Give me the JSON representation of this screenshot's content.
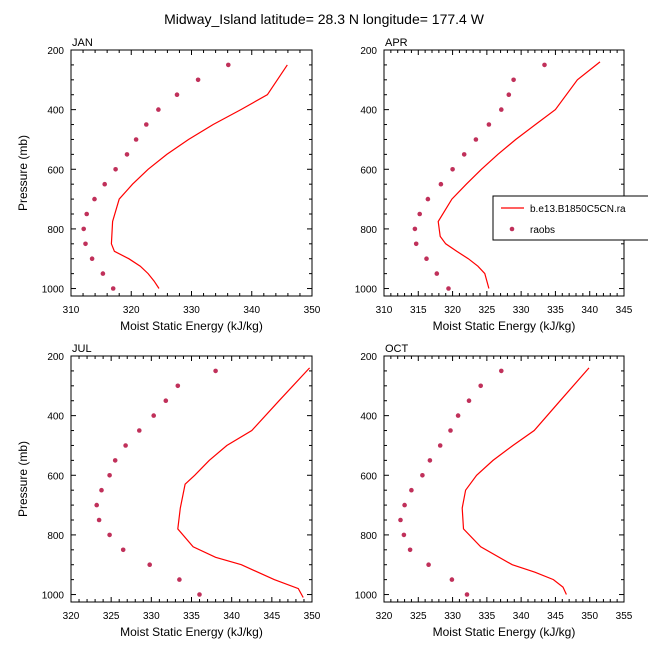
{
  "title": "Midway_Island  latitude= 28.3 N longitude= 177.4 W",
  "colors": {
    "model": "#ff0000",
    "obs": "#c0305a",
    "axis": "#000000"
  },
  "legend": {
    "entries": [
      "b.e13.B1850C5CN.ra",
      "raobs"
    ],
    "placement": "right-middle"
  },
  "chart_data": [
    {
      "type": "line",
      "panel": "JAN",
      "xlabel": "Moist Static Energy (kJ/kg)",
      "ylabel": "Pressure (mb)",
      "xlim": [
        310,
        350
      ],
      "xticks": [
        310,
        320,
        330,
        340,
        350
      ],
      "ylim": [
        1025,
        200
      ],
      "yticks": [
        200,
        400,
        600,
        800,
        1000
      ],
      "series": [
        {
          "name": "b.e13.B1850C5CN.ra",
          "style": "line",
          "x": [
            324.6,
            323.8,
            322.8,
            321.5,
            319.6,
            317.2,
            316.7,
            316.9,
            318.0,
            320.2,
            322.8,
            325.9,
            329.5,
            333.6,
            338.2,
            342.6,
            345.9
          ],
          "y": [
            1000,
            975,
            950,
            925,
            900,
            875,
            850,
            775,
            700,
            650,
            600,
            550,
            500,
            450,
            400,
            350,
            250
          ]
        },
        {
          "name": "raobs",
          "style": "markers",
          "x": [
            317.0,
            315.3,
            313.5,
            312.4,
            312.1,
            312.6,
            313.9,
            315.6,
            317.4,
            319.3,
            320.8,
            322.5,
            324.5,
            327.6,
            331.1,
            336.1
          ],
          "y": [
            1000,
            950,
            900,
            850,
            800,
            750,
            700,
            650,
            600,
            550,
            500,
            450,
            400,
            350,
            300,
            250
          ]
        }
      ]
    },
    {
      "type": "line",
      "panel": "APR",
      "xlabel": "Moist Static Energy (kJ/kg)",
      "ylabel": "",
      "xlim": [
        310,
        345
      ],
      "xticks": [
        310,
        315,
        320,
        325,
        330,
        335,
        340,
        345
      ],
      "ylim": [
        1025,
        200
      ],
      "yticks": [
        200,
        400,
        600,
        800,
        1000
      ],
      "series": [
        {
          "name": "b.e13.B1850C5CN.ra",
          "style": "line",
          "x": [
            325.3,
            324.7,
            323.7,
            322.3,
            320.6,
            319.0,
            318.2,
            317.9,
            319.9,
            322.0,
            324.2,
            326.6,
            329.2,
            332.1,
            335.0,
            338.2,
            341.5
          ],
          "y": [
            1000,
            950,
            925,
            900,
            875,
            850,
            825,
            775,
            700,
            650,
            600,
            550,
            500,
            450,
            400,
            300,
            240
          ]
        },
        {
          "name": "raobs",
          "style": "markers",
          "x": [
            319.4,
            317.7,
            316.2,
            314.7,
            314.5,
            315.2,
            316.4,
            318.3,
            320.0,
            321.7,
            323.4,
            325.3,
            327.1,
            328.2,
            328.9,
            333.4
          ],
          "y": [
            1000,
            950,
            900,
            850,
            800,
            750,
            700,
            650,
            600,
            550,
            500,
            450,
            400,
            350,
            300,
            250
          ]
        }
      ]
    },
    {
      "type": "line",
      "panel": "JUL",
      "xlabel": "Moist Static Energy (kJ/kg)",
      "ylabel": "Pressure (mb)",
      "xlim": [
        320,
        350
      ],
      "xticks": [
        320,
        325,
        330,
        335,
        340,
        345,
        350
      ],
      "ylim": [
        1025,
        200
      ],
      "yticks": [
        200,
        400,
        600,
        800,
        1000
      ],
      "series": [
        {
          "name": "b.e13.B1850C5CN.ra",
          "style": "line",
          "x": [
            348.9,
            348.3,
            345.3,
            341.2,
            338.0,
            335.2,
            333.3,
            333.6,
            334.2,
            335.4,
            337.2,
            339.4,
            342.5,
            345.9,
            349.7
          ],
          "y": [
            1010,
            980,
            950,
            900,
            875,
            840,
            780,
            710,
            630,
            600,
            550,
            500,
            450,
            350,
            240
          ]
        },
        {
          "name": "raobs",
          "style": "markers",
          "x": [
            336.0,
            333.5,
            329.8,
            326.5,
            324.8,
            323.5,
            323.2,
            323.8,
            324.8,
            325.5,
            326.8,
            328.5,
            330.3,
            331.8,
            333.3,
            338.0
          ],
          "y": [
            1000,
            950,
            900,
            850,
            800,
            750,
            700,
            650,
            600,
            550,
            500,
            450,
            400,
            350,
            300,
            250
          ]
        }
      ]
    },
    {
      "type": "line",
      "panel": "OCT",
      "xlabel": "Moist Static Energy (kJ/kg)",
      "ylabel": "",
      "xlim": [
        320,
        355
      ],
      "xticks": [
        320,
        325,
        330,
        335,
        340,
        345,
        350,
        355
      ],
      "ylim": [
        1025,
        200
      ],
      "yticks": [
        200,
        400,
        600,
        800,
        1000
      ],
      "series": [
        {
          "name": "b.e13.B1850C5CN.ra",
          "style": "line",
          "x": [
            346.6,
            346.1,
            344.7,
            342.0,
            338.7,
            334.1,
            331.6,
            331.4,
            331.9,
            333.5,
            335.9,
            338.8,
            341.9,
            345.7,
            349.9
          ],
          "y": [
            1000,
            975,
            950,
            925,
            900,
            840,
            780,
            710,
            650,
            600,
            550,
            500,
            450,
            350,
            240
          ]
        },
        {
          "name": "raobs",
          "style": "markers",
          "x": [
            332.1,
            329.9,
            326.5,
            323.8,
            322.9,
            322.4,
            323.0,
            324.0,
            325.6,
            326.7,
            328.2,
            329.7,
            330.8,
            332.4,
            334.1,
            337.1
          ],
          "y": [
            1000,
            950,
            900,
            850,
            800,
            750,
            700,
            650,
            600,
            550,
            500,
            450,
            400,
            350,
            300,
            250
          ]
        }
      ]
    }
  ]
}
